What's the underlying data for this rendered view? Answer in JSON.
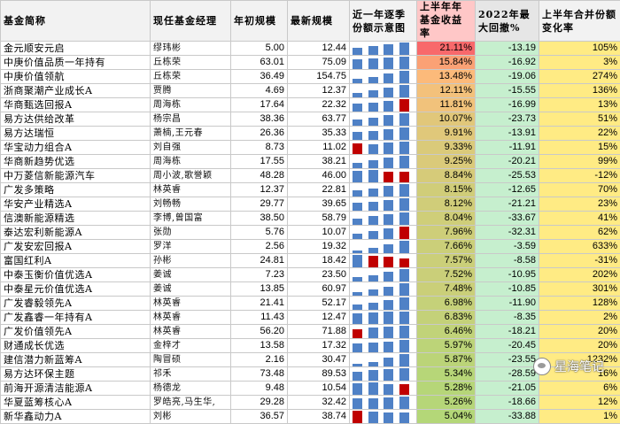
{
  "headers": {
    "name": "基金简称",
    "manager": "现任基金经理",
    "start_size": "年初规模",
    "latest_size": "最新规模",
    "quarterly": "近一年逐季份额示意图",
    "return": "上半年年基金收益率",
    "drawdown": "2022年最大回撤%",
    "share_change": "上半年合并份额变化率"
  },
  "colors": {
    "up_bar": "#4f81c6",
    "down_bar": "#c00000",
    "drawdown_bg": "#c6efce",
    "change_bg": "#ffeb84"
  },
  "rows": [
    {
      "name": "金元顺安元启",
      "manager": "缪玮彬",
      "start": "5.00",
      "latest": "12.44",
      "q": [
        0.55,
        0.7,
        0.85,
        1.0
      ],
      "qdir": [
        "u",
        "u",
        "u",
        "u"
      ],
      "ret": "21.11%",
      "retn": 21.11,
      "dd": "-13.19",
      "chg": "105%"
    },
    {
      "name": "中庚价值品质一年持有",
      "manager": "丘栋荣",
      "start": "63.01",
      "latest": "75.09",
      "q": [
        0.75,
        0.8,
        0.9,
        1.0
      ],
      "qdir": [
        "u",
        "u",
        "u",
        "u"
      ],
      "ret": "15.84%",
      "retn": 15.84,
      "dd": "-16.92",
      "chg": "3%"
    },
    {
      "name": "中庚价值领航",
      "manager": "丘栋荣",
      "start": "36.49",
      "latest": "154.75",
      "q": [
        0.3,
        0.5,
        0.75,
        1.0
      ],
      "qdir": [
        "u",
        "u",
        "u",
        "u"
      ],
      "ret": "13.48%",
      "retn": 13.48,
      "dd": "-19.06",
      "chg": "274%"
    },
    {
      "name": "浙商聚潮产业成长A",
      "manager": "贾腾",
      "start": "4.69",
      "latest": "12.37",
      "q": [
        0.35,
        0.55,
        0.75,
        1.0
      ],
      "qdir": [
        "u",
        "u",
        "u",
        "u"
      ],
      "ret": "12.11%",
      "retn": 12.11,
      "dd": "-15.55",
      "chg": "136%"
    },
    {
      "name": "华商甄选回报A",
      "manager": "周海栋",
      "start": "17.64",
      "latest": "22.32",
      "q": [
        0.6,
        0.7,
        0.85,
        1.0
      ],
      "qdir": [
        "u",
        "u",
        "u",
        "d"
      ],
      "ret": "11.81%",
      "retn": 11.81,
      "dd": "-16.99",
      "chg": "13%"
    },
    {
      "name": "易方达供给改革",
      "manager": "杨宗昌",
      "start": "38.36",
      "latest": "63.77",
      "q": [
        0.5,
        0.6,
        0.8,
        1.0
      ],
      "qdir": [
        "u",
        "u",
        "u",
        "u"
      ],
      "ret": "10.07%",
      "retn": 10.07,
      "dd": "-23.73",
      "chg": "51%"
    },
    {
      "name": "易方达瑞恒",
      "manager": "萧楠,王元春",
      "start": "26.36",
      "latest": "35.33",
      "q": [
        0.6,
        0.7,
        0.85,
        1.0
      ],
      "qdir": [
        "u",
        "u",
        "u",
        "u"
      ],
      "ret": "9.91%",
      "retn": 9.91,
      "dd": "-13.91",
      "chg": "22%"
    },
    {
      "name": "华宝动力组合A",
      "manager": "刘自强",
      "start": "8.73",
      "latest": "11.02",
      "q": [
        0.8,
        0.75,
        0.9,
        1.0
      ],
      "qdir": [
        "d",
        "u",
        "u",
        "u"
      ],
      "ret": "9.33%",
      "retn": 9.33,
      "dd": "-11.91",
      "chg": "15%"
    },
    {
      "name": "华商新趋势优选",
      "manager": "周海栋",
      "start": "17.55",
      "latest": "38.21",
      "q": [
        0.4,
        0.6,
        0.8,
        1.0
      ],
      "qdir": [
        "u",
        "u",
        "u",
        "u"
      ],
      "ret": "9.25%",
      "retn": 9.25,
      "dd": "-20.21",
      "chg": "99%"
    },
    {
      "name": "中万菱信新能源汽车",
      "manager": "周小波,歌誉颖",
      "start": "48.28",
      "latest": "46.00",
      "q": [
        0.9,
        1.0,
        0.85,
        0.8
      ],
      "qdir": [
        "u",
        "u",
        "d",
        "d"
      ],
      "ret": "8.84%",
      "retn": 8.84,
      "dd": "-25.53",
      "chg": "-12%"
    },
    {
      "name": "广发多策略",
      "manager": "林英睿",
      "start": "12.37",
      "latest": "22.81",
      "q": [
        0.5,
        0.6,
        0.8,
        1.0
      ],
      "qdir": [
        "u",
        "u",
        "u",
        "u"
      ],
      "ret": "8.15%",
      "retn": 8.15,
      "dd": "-12.65",
      "chg": "70%"
    },
    {
      "name": "华安产业精选A",
      "manager": "刘畅畅",
      "start": "29.77",
      "latest": "39.65",
      "q": [
        0.6,
        0.7,
        0.85,
        1.0
      ],
      "qdir": [
        "u",
        "u",
        "u",
        "u"
      ],
      "ret": "8.12%",
      "retn": 8.12,
      "dd": "-21.21",
      "chg": "23%"
    },
    {
      "name": "信澳新能源精选",
      "manager": "李博,曾国富",
      "start": "38.50",
      "latest": "58.79",
      "q": [
        0.5,
        0.65,
        0.85,
        1.0
      ],
      "qdir": [
        "u",
        "u",
        "u",
        "u"
      ],
      "ret": "8.04%",
      "retn": 8.04,
      "dd": "-33.67",
      "chg": "41%"
    },
    {
      "name": "泰达宏利新能源A",
      "manager": "张勋",
      "start": "5.76",
      "latest": "10.07",
      "q": [
        0.4,
        0.6,
        0.8,
        1.0
      ],
      "qdir": [
        "u",
        "u",
        "u",
        "d"
      ],
      "ret": "7.96%",
      "retn": 7.96,
      "dd": "-32.31",
      "chg": "62%"
    },
    {
      "name": "广发安宏回报A",
      "manager": "罗洋",
      "start": "2.56",
      "latest": "19.32",
      "q": [
        0.2,
        0.4,
        0.7,
        1.0
      ],
      "qdir": [
        "u",
        "u",
        "u",
        "u"
      ],
      "ret": "7.66%",
      "retn": 7.66,
      "dd": "-3.59",
      "chg": "633%"
    },
    {
      "name": "富国红利A",
      "manager": "孙彬",
      "start": "24.81",
      "latest": "18.42",
      "q": [
        1.0,
        0.9,
        0.8,
        0.7
      ],
      "qdir": [
        "u",
        "d",
        "d",
        "d"
      ],
      "ret": "7.57%",
      "retn": 7.57,
      "dd": "-8.58",
      "chg": "-31%"
    },
    {
      "name": "中泰玉衡价值优选A",
      "manager": "姜诚",
      "start": "7.23",
      "latest": "23.50",
      "q": [
        0.3,
        0.5,
        0.75,
        1.0
      ],
      "qdir": [
        "u",
        "u",
        "u",
        "u"
      ],
      "ret": "7.52%",
      "retn": 7.52,
      "dd": "-10.95",
      "chg": "202%"
    },
    {
      "name": "中泰星元价值优选A",
      "manager": "姜诚",
      "start": "13.85",
      "latest": "60.97",
      "q": [
        0.25,
        0.45,
        0.7,
        1.0
      ],
      "qdir": [
        "u",
        "u",
        "u",
        "u"
      ],
      "ret": "7.48%",
      "retn": 7.48,
      "dd": "-10.85",
      "chg": "301%"
    },
    {
      "name": "广发睿毅领先A",
      "manager": "林英睿",
      "start": "21.41",
      "latest": "52.17",
      "q": [
        0.4,
        0.55,
        0.75,
        1.0
      ],
      "qdir": [
        "u",
        "u",
        "u",
        "u"
      ],
      "ret": "6.98%",
      "retn": 6.98,
      "dd": "-11.90",
      "chg": "128%"
    },
    {
      "name": "广发鑫睿一年持有A",
      "manager": "林英睿",
      "start": "11.43",
      "latest": "12.47",
      "q": [
        0.85,
        0.9,
        0.95,
        1.0
      ],
      "qdir": [
        "u",
        "u",
        "u",
        "u"
      ],
      "ret": "6.83%",
      "retn": 6.83,
      "dd": "-8.35",
      "chg": "2%"
    },
    {
      "name": "广发价值领先A",
      "manager": "林英睿",
      "start": "56.20",
      "latest": "71.88",
      "q": [
        0.7,
        0.8,
        0.9,
        1.0
      ],
      "qdir": [
        "d",
        "u",
        "u",
        "u"
      ],
      "ret": "6.46%",
      "retn": 6.46,
      "dd": "-18.21",
      "chg": "20%"
    },
    {
      "name": "财通成长优选",
      "manager": "金梓才",
      "start": "13.58",
      "latest": "17.32",
      "q": [
        0.7,
        0.75,
        0.85,
        1.0
      ],
      "qdir": [
        "u",
        "u",
        "u",
        "u"
      ],
      "ret": "5.97%",
      "retn": 5.97,
      "dd": "-20.45",
      "chg": "20%"
    },
    {
      "name": "建信潜力新蓝筹A",
      "manager": "陶冒硕",
      "start": "2.16",
      "latest": "30.47",
      "q": [
        0.15,
        0.35,
        0.65,
        1.0
      ],
      "qdir": [
        "u",
        "u",
        "u",
        "u"
      ],
      "ret": "5.87%",
      "retn": 5.87,
      "dd": "-23.55",
      "chg": "1232%"
    },
    {
      "name": "易方达环保主题",
      "manager": "祁禾",
      "start": "73.48",
      "latest": "89.53",
      "q": [
        0.7,
        0.8,
        0.9,
        1.0
      ],
      "qdir": [
        "u",
        "u",
        "u",
        "u"
      ],
      "ret": "5.34%",
      "retn": 5.34,
      "dd": "-28.59",
      "chg": "16%"
    },
    {
      "name": "前海开源清洁能源A",
      "manager": "杨德龙",
      "start": "9.48",
      "latest": "10.54",
      "q": [
        0.9,
        1.0,
        0.85,
        0.8
      ],
      "qdir": [
        "u",
        "u",
        "u",
        "d"
      ],
      "ret": "5.28%",
      "retn": 5.28,
      "dd": "-21.05",
      "chg": "6%"
    },
    {
      "name": "华夏蓝筹核心A",
      "manager": "罗皓亮,马生华,",
      "start": "29.28",
      "latest": "32.42",
      "q": [
        0.8,
        0.85,
        0.9,
        1.0
      ],
      "qdir": [
        "u",
        "u",
        "u",
        "u"
      ],
      "ret": "5.26%",
      "retn": 5.26,
      "dd": "-18.66",
      "chg": "12%"
    },
    {
      "name": "新华鑫动力A",
      "manager": "刘彬",
      "start": "36.57",
      "latest": "38.74",
      "q": [
        1.0,
        0.9,
        0.85,
        0.8
      ],
      "qdir": [
        "d",
        "u",
        "u",
        "u"
      ],
      "ret": "5.04%",
      "retn": 5.04,
      "dd": "-33.88",
      "chg": "1%"
    }
  ],
  "watermark": "星海笔记"
}
